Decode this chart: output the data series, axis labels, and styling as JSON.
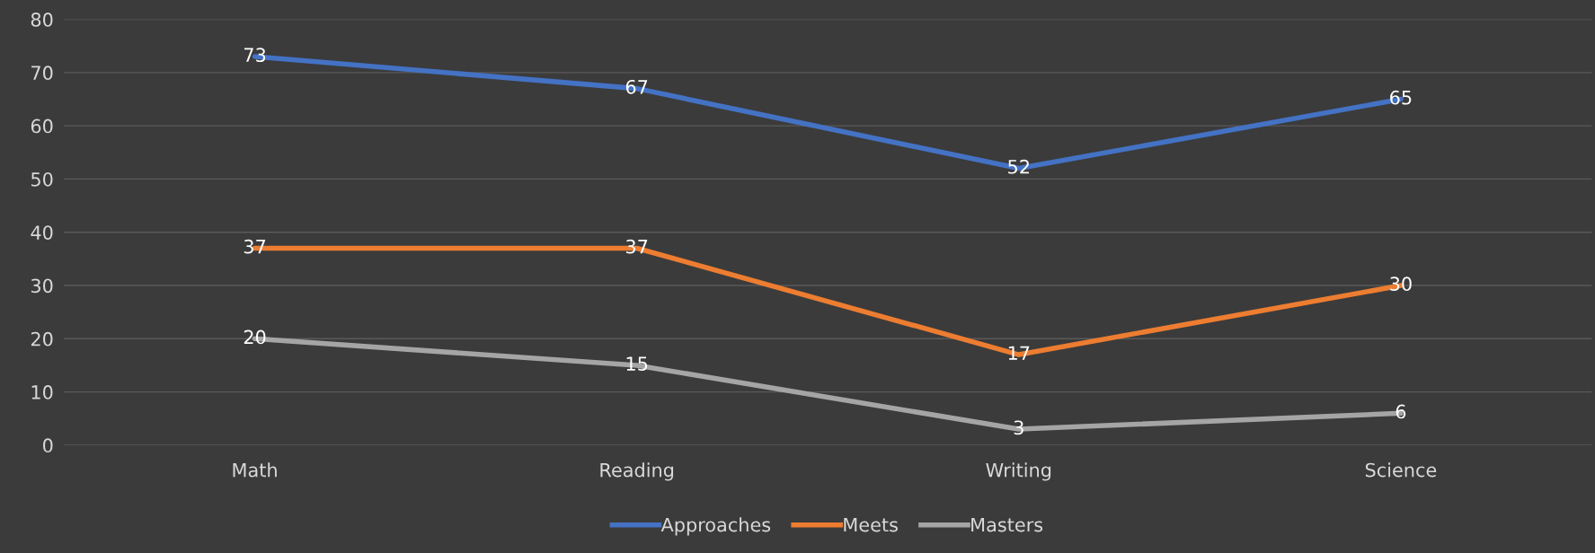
{
  "chart_data": {
    "type": "line",
    "categories": [
      "Math",
      "Reading",
      "Writing",
      "Science"
    ],
    "series": [
      {
        "name": "Approaches",
        "color": "#4472c4",
        "values": [
          73,
          67,
          52,
          65
        ]
      },
      {
        "name": "Meets",
        "color": "#ed7d31",
        "values": [
          37,
          37,
          17,
          30
        ]
      },
      {
        "name": "Masters",
        "color": "#a5a5a5",
        "values": [
          20,
          15,
          3,
          6
        ]
      }
    ],
    "ylim": [
      0,
      80
    ],
    "yticks": [
      0,
      10,
      20,
      30,
      40,
      50,
      60,
      70,
      80
    ],
    "grid": "y",
    "legend": "bottom",
    "data_labels": true,
    "marker": "none",
    "line_style": "solid"
  }
}
